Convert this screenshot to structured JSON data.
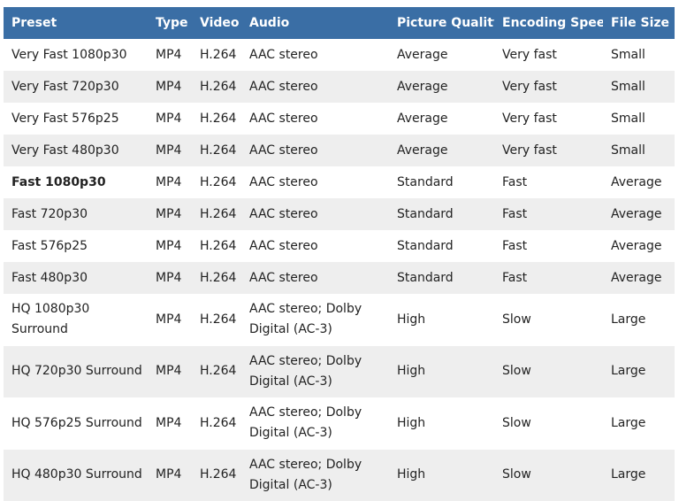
{
  "table": {
    "headers": {
      "preset": "Preset",
      "type": "Type",
      "video": "Video",
      "audio": "Audio",
      "quality": "Picture Quality",
      "speed": "Encoding Speed",
      "size": "File Size"
    },
    "rows": [
      {
        "preset": "Very Fast 1080p30",
        "type": "MP4",
        "video": "H.264",
        "audio": [
          "AAC stereo"
        ],
        "quality": "Average",
        "speed": "Very fast",
        "size": "Small",
        "bold": false
      },
      {
        "preset": "Very Fast 720p30",
        "type": "MP4",
        "video": "H.264",
        "audio": [
          "AAC stereo"
        ],
        "quality": "Average",
        "speed": "Very fast",
        "size": "Small",
        "bold": false
      },
      {
        "preset": "Very Fast 576p25",
        "type": "MP4",
        "video": "H.264",
        "audio": [
          "AAC stereo"
        ],
        "quality": "Average",
        "speed": "Very fast",
        "size": "Small",
        "bold": false
      },
      {
        "preset": "Very Fast 480p30",
        "type": "MP4",
        "video": "H.264",
        "audio": [
          "AAC stereo"
        ],
        "quality": "Average",
        "speed": "Very fast",
        "size": "Small",
        "bold": false
      },
      {
        "preset": "Fast 1080p30",
        "type": "MP4",
        "video": "H.264",
        "audio": [
          "AAC stereo"
        ],
        "quality": "Standard",
        "speed": "Fast",
        "size": "Average",
        "bold": true
      },
      {
        "preset": "Fast 720p30",
        "type": "MP4",
        "video": "H.264",
        "audio": [
          "AAC stereo"
        ],
        "quality": "Standard",
        "speed": "Fast",
        "size": "Average",
        "bold": false
      },
      {
        "preset": "Fast 576p25",
        "type": "MP4",
        "video": "H.264",
        "audio": [
          "AAC stereo"
        ],
        "quality": "Standard",
        "speed": "Fast",
        "size": "Average",
        "bold": false
      },
      {
        "preset": "Fast 480p30",
        "type": "MP4",
        "video": "H.264",
        "audio": [
          "AAC stereo"
        ],
        "quality": "Standard",
        "speed": "Fast",
        "size": "Average",
        "bold": false
      },
      {
        "preset": "HQ 1080p30 Surround",
        "type": "MP4",
        "video": "H.264",
        "audio": [
          "AAC stereo; Dolby",
          "Digital (AC-3)"
        ],
        "quality": "High",
        "speed": "Slow",
        "size": "Large",
        "bold": false
      },
      {
        "preset": "HQ 720p30 Surround",
        "type": "MP4",
        "video": "H.264",
        "audio": [
          "AAC stereo; Dolby",
          "Digital (AC-3)"
        ],
        "quality": "High",
        "speed": "Slow",
        "size": "Large",
        "bold": false
      },
      {
        "preset": "HQ 576p25 Surround",
        "type": "MP4",
        "video": "H.264",
        "audio": [
          "AAC stereo; Dolby",
          "Digital (AC-3)"
        ],
        "quality": "High",
        "speed": "Slow",
        "size": "Large",
        "bold": false
      },
      {
        "preset": "HQ 480p30 Surround",
        "type": "MP4",
        "video": "H.264",
        "audio": [
          "AAC stereo; Dolby",
          "Digital (AC-3)"
        ],
        "quality": "High",
        "speed": "Slow",
        "size": "Large",
        "bold": false
      }
    ],
    "colors": {
      "header_bg": "#3a6ea5",
      "header_text": "#ffffff",
      "row_alt_bg": "#eeeeee"
    }
  }
}
